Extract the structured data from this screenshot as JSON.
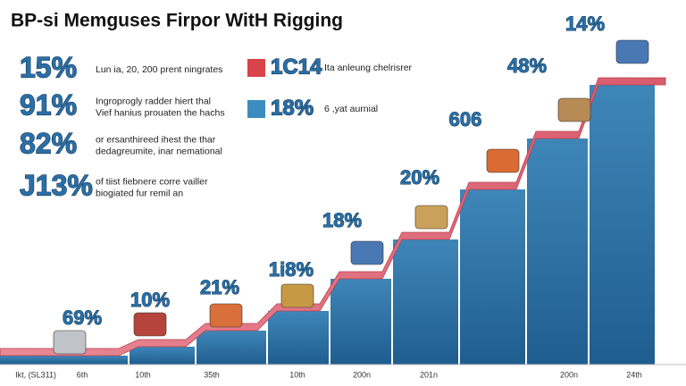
{
  "header": {
    "title": "BP-si Memguses Firpor WitH Rigging"
  },
  "stats": [
    {
      "value": "15%",
      "lines": [
        "Lun ia, 20, 200 prent ningrates"
      ]
    },
    {
      "value": "91%",
      "lines": [
        "Ingroprogly radder hiert thal",
        "Vief hanius prouaten the hachs"
      ]
    },
    {
      "value": "82%",
      "lines": [
        "or ersanthireed ihest the thar",
        "dedagreumite, inar nemational"
      ]
    },
    {
      "value": "J13%",
      "lines": [
        "of tiist fiebnere corre vailler",
        "biogiated fur remil an"
      ]
    }
  ],
  "legend": [
    {
      "value": "1C14",
      "text": "Ita anleung chelrisrer"
    },
    {
      "value": "18%",
      "text": "6 ,yat aurnial"
    }
  ],
  "steps": [
    "69%",
    "10%",
    "21%",
    "1i8%",
    "18%",
    "20%",
    "606",
    "48%",
    "14%"
  ],
  "footer": [
    "Ikt, (SL311)",
    "6th",
    "10th",
    "35th",
    "10th",
    "200n",
    "201n",
    "200n",
    "24th"
  ]
}
